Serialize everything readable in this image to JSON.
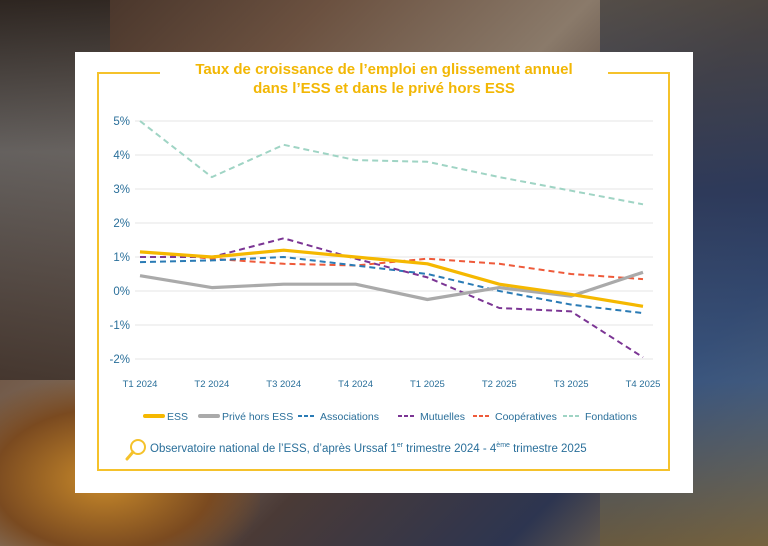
{
  "chart_data": {
    "type": "line",
    "title": "Taux de croissance de l’emploi en glissement annuel dans l’ESS et dans le privé hors ESS",
    "title_lines": [
      "Taux de croissance de l’emploi en glissement annuel",
      "dans l’ESS et dans le privé hors ESS"
    ],
    "categories": [
      "T1 2024",
      "T2 2024",
      "T3 2024",
      "T4 2024",
      "T1 2025",
      "T2 2025",
      "T3 2025",
      "T4 2025"
    ],
    "y_ticks": [
      5,
      4,
      3,
      2,
      1,
      0,
      -1,
      -2
    ],
    "y_tick_labels": [
      "5%",
      "4%",
      "3%",
      "2%",
      "1%",
      "0%",
      "-1%",
      "-2%"
    ],
    "ylim": [
      -2,
      5
    ],
    "ylabel": "",
    "xlabel": "",
    "grid": "horizontal",
    "legend_position": "bottom",
    "series": [
      {
        "name": "ESS",
        "color": "#f5b800",
        "style": "solid-thick",
        "values": [
          1.15,
          1.0,
          1.2,
          1.0,
          0.8,
          0.2,
          -0.1,
          -0.45
        ]
      },
      {
        "name": "Privé hors ESS",
        "color": "#aaaaaa",
        "style": "solid-thick",
        "values": [
          0.45,
          0.1,
          0.2,
          0.2,
          -0.25,
          0.1,
          -0.15,
          0.55
        ]
      },
      {
        "name": "Associations",
        "color": "#2a7bb5",
        "style": "dashed",
        "values": [
          0.85,
          0.9,
          1.0,
          0.75,
          0.5,
          0.0,
          -0.4,
          -0.65
        ]
      },
      {
        "name": "Mutuelles",
        "color": "#7b3594",
        "style": "dashed",
        "values": [
          1.0,
          1.0,
          1.55,
          0.95,
          0.4,
          -0.5,
          -0.6,
          -1.95
        ]
      },
      {
        "name": "Coopératives",
        "color": "#ee5a3a",
        "style": "dashed",
        "values": [
          1.15,
          0.95,
          0.8,
          0.75,
          0.95,
          0.8,
          0.5,
          0.35
        ]
      },
      {
        "name": "Fondations",
        "color": "#9fd4c4",
        "style": "dashed",
        "values": [
          5.0,
          3.35,
          4.3,
          3.85,
          3.8,
          3.35,
          2.95,
          2.55
        ]
      }
    ]
  },
  "source": {
    "icon": "magnifier-icon",
    "text_before_1": "Observatoire national de l’ESS, d’après Urssaf 1",
    "sup_1": "er",
    "text_middle": " trimestre 2024 - 4",
    "sup_2": "ème",
    "text_after": " trimestre 2025"
  },
  "colors": {
    "accent": "#f5c22b",
    "text": "#2a6f9a"
  }
}
